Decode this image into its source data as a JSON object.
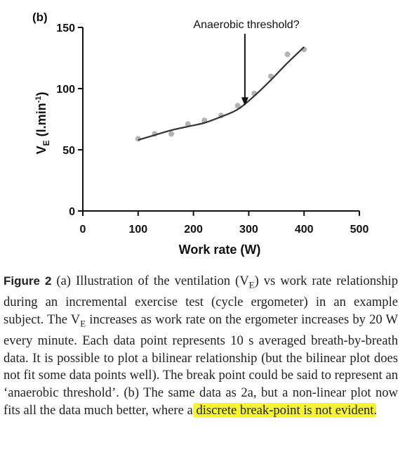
{
  "chart_data": {
    "type": "scatter",
    "panel_label": "(b)",
    "xlabel": "Work rate (W)",
    "ylabel_main": "V",
    "ylabel_sub": "E",
    "ylabel_units_pre": " (l.min",
    "ylabel_units_sup": "-1",
    "ylabel_units_post": ")",
    "xlim": [
      0,
      500
    ],
    "ylim": [
      0,
      150
    ],
    "x_ticks": [
      0,
      100,
      200,
      300,
      400,
      500
    ],
    "y_ticks": [
      0,
      50,
      100,
      150
    ],
    "annotation": {
      "text": "Anaerobic threshold?",
      "x": 293,
      "y": 86
    },
    "series": [
      {
        "kind": "points",
        "color": "#b3b3b3",
        "x": [
          100,
          130,
          160,
          190,
          220,
          250,
          280,
          310,
          340,
          370,
          400
        ],
        "y": [
          59,
          63,
          63,
          71,
          74,
          78,
          86,
          96,
          110,
          128,
          132
        ]
      },
      {
        "kind": "fit-curve",
        "color": "#333333",
        "x": [
          100,
          130,
          160,
          190,
          220,
          250,
          280,
          310,
          340,
          370,
          400
        ],
        "y": [
          58,
          62,
          66,
          69,
          72,
          77,
          83,
          94,
          107,
          121,
          134
        ]
      }
    ]
  },
  "caption": {
    "label": "Figure 2",
    "text_a": " (a) Illustration of the ventilation (V",
    "sub_a": "E",
    "text_b": ") vs work rate relationship during an incremental exercise test (cycle ergometer) in an example subject. The V",
    "sub_b": "E",
    "text_c": " increases as work rate on the ergometer increases by 20 W every minute. Each data point represents 10 s averaged breath-by-breath data. It is possible to plot a bilinear relationship (but the bilinear plot does not fit some data points well). The break point could be said to represent an ‘anaerobic threshold’. (b) The same data as 2a, but a non-linear plot now fits all the data much better, where a ",
    "highlight": "discrete break-point is not evident",
    "text_end": ".",
    "highlight_color": "#f7f533"
  }
}
